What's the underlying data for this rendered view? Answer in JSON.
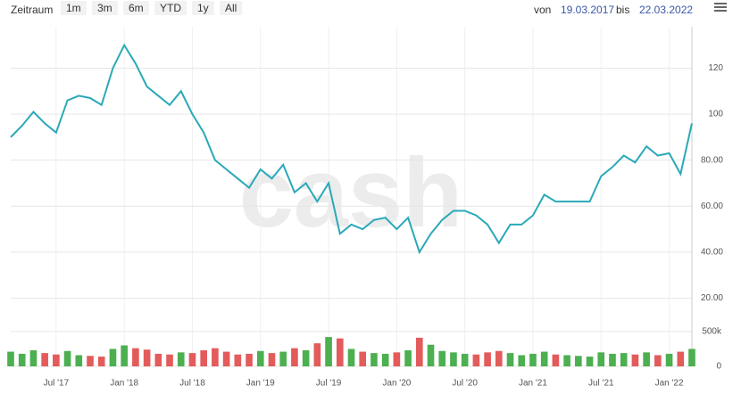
{
  "toolbar": {
    "label": "Zeitraum",
    "buttons": [
      "1m",
      "3m",
      "6m",
      "YTD",
      "1y",
      "All"
    ],
    "from_label": "von",
    "from": "19.03.2017",
    "to_label": "bis",
    "to": "22.03.2022"
  },
  "chart_data": {
    "type": "line",
    "watermark": "cash",
    "x": [
      "2017-03",
      "2017-04",
      "2017-05",
      "2017-06",
      "2017-07",
      "2017-08",
      "2017-09",
      "2017-10",
      "2017-11",
      "2017-12",
      "2018-01",
      "2018-02",
      "2018-03",
      "2018-04",
      "2018-05",
      "2018-06",
      "2018-07",
      "2018-08",
      "2018-09",
      "2018-10",
      "2018-11",
      "2018-12",
      "2019-01",
      "2019-02",
      "2019-03",
      "2019-04",
      "2019-05",
      "2019-06",
      "2019-07",
      "2019-08",
      "2019-09",
      "2019-10",
      "2019-11",
      "2019-12",
      "2020-01",
      "2020-02",
      "2020-03",
      "2020-04",
      "2020-05",
      "2020-06",
      "2020-07",
      "2020-08",
      "2020-09",
      "2020-10",
      "2020-11",
      "2020-12",
      "2021-01",
      "2021-02",
      "2021-03",
      "2021-04",
      "2021-05",
      "2021-06",
      "2021-07",
      "2021-08",
      "2021-09",
      "2021-10",
      "2021-11",
      "2021-12",
      "2022-01",
      "2022-02",
      "2022-03"
    ],
    "xlim": [
      "2017-03",
      "2022-03"
    ],
    "xticks": [
      {
        "value": "2017-07",
        "label": "Jul '17"
      },
      {
        "value": "2018-01",
        "label": "Jan '18"
      },
      {
        "value": "2018-07",
        "label": "Jul '18"
      },
      {
        "value": "2019-01",
        "label": "Jan '19"
      },
      {
        "value": "2019-07",
        "label": "Jul '19"
      },
      {
        "value": "2020-01",
        "label": "Jan '20"
      },
      {
        "value": "2020-07",
        "label": "Jul '20"
      },
      {
        "value": "2021-01",
        "label": "Jan '21"
      },
      {
        "value": "2021-07",
        "label": "Jul '21"
      },
      {
        "value": "2022-01",
        "label": "Jan '22"
      }
    ],
    "ylim": [
      14,
      138
    ],
    "yticks": [
      {
        "value": 20,
        "label": "20.00"
      },
      {
        "value": 40,
        "label": "40.00"
      },
      {
        "value": 60,
        "label": "60.00"
      },
      {
        "value": 80,
        "label": "80.00"
      },
      100,
      120
    ],
    "y2lim": [
      0,
      600000
    ],
    "y2ticks": [
      0,
      {
        "value": 500000,
        "label": "500k"
      }
    ],
    "grid": true,
    "series": [
      {
        "color": "#2aa9b8",
        "values": [
          90,
          95,
          101,
          96,
          92,
          106,
          108,
          107,
          104,
          120,
          130,
          122,
          112,
          108,
          104,
          110,
          100,
          92,
          80,
          76,
          72,
          68,
          76,
          72,
          78,
          66,
          70,
          62,
          70,
          48,
          52,
          50,
          54,
          55,
          50,
          55,
          40,
          48,
          54,
          58,
          58,
          56,
          52,
          44,
          52,
          52,
          56,
          65,
          62,
          62,
          62,
          62,
          73,
          77,
          82,
          79,
          86,
          82,
          83,
          74,
          96
        ]
      },
      {
        "axis": "y2",
        "up_color": "#4caf50",
        "down_color": "#e35b5b",
        "values": [
          210000,
          180000,
          230000,
          190000,
          170000,
          220000,
          160000,
          150000,
          140000,
          250000,
          300000,
          260000,
          240000,
          180000,
          170000,
          200000,
          190000,
          230000,
          260000,
          210000,
          170000,
          180000,
          220000,
          190000,
          210000,
          260000,
          230000,
          330000,
          420000,
          400000,
          250000,
          210000,
          190000,
          180000,
          200000,
          230000,
          410000,
          310000,
          220000,
          200000,
          180000,
          170000,
          200000,
          220000,
          190000,
          160000,
          180000,
          210000,
          170000,
          160000,
          150000,
          140000,
          200000,
          180000,
          190000,
          170000,
          200000,
          160000,
          180000,
          210000,
          250000
        ]
      }
    ]
  }
}
